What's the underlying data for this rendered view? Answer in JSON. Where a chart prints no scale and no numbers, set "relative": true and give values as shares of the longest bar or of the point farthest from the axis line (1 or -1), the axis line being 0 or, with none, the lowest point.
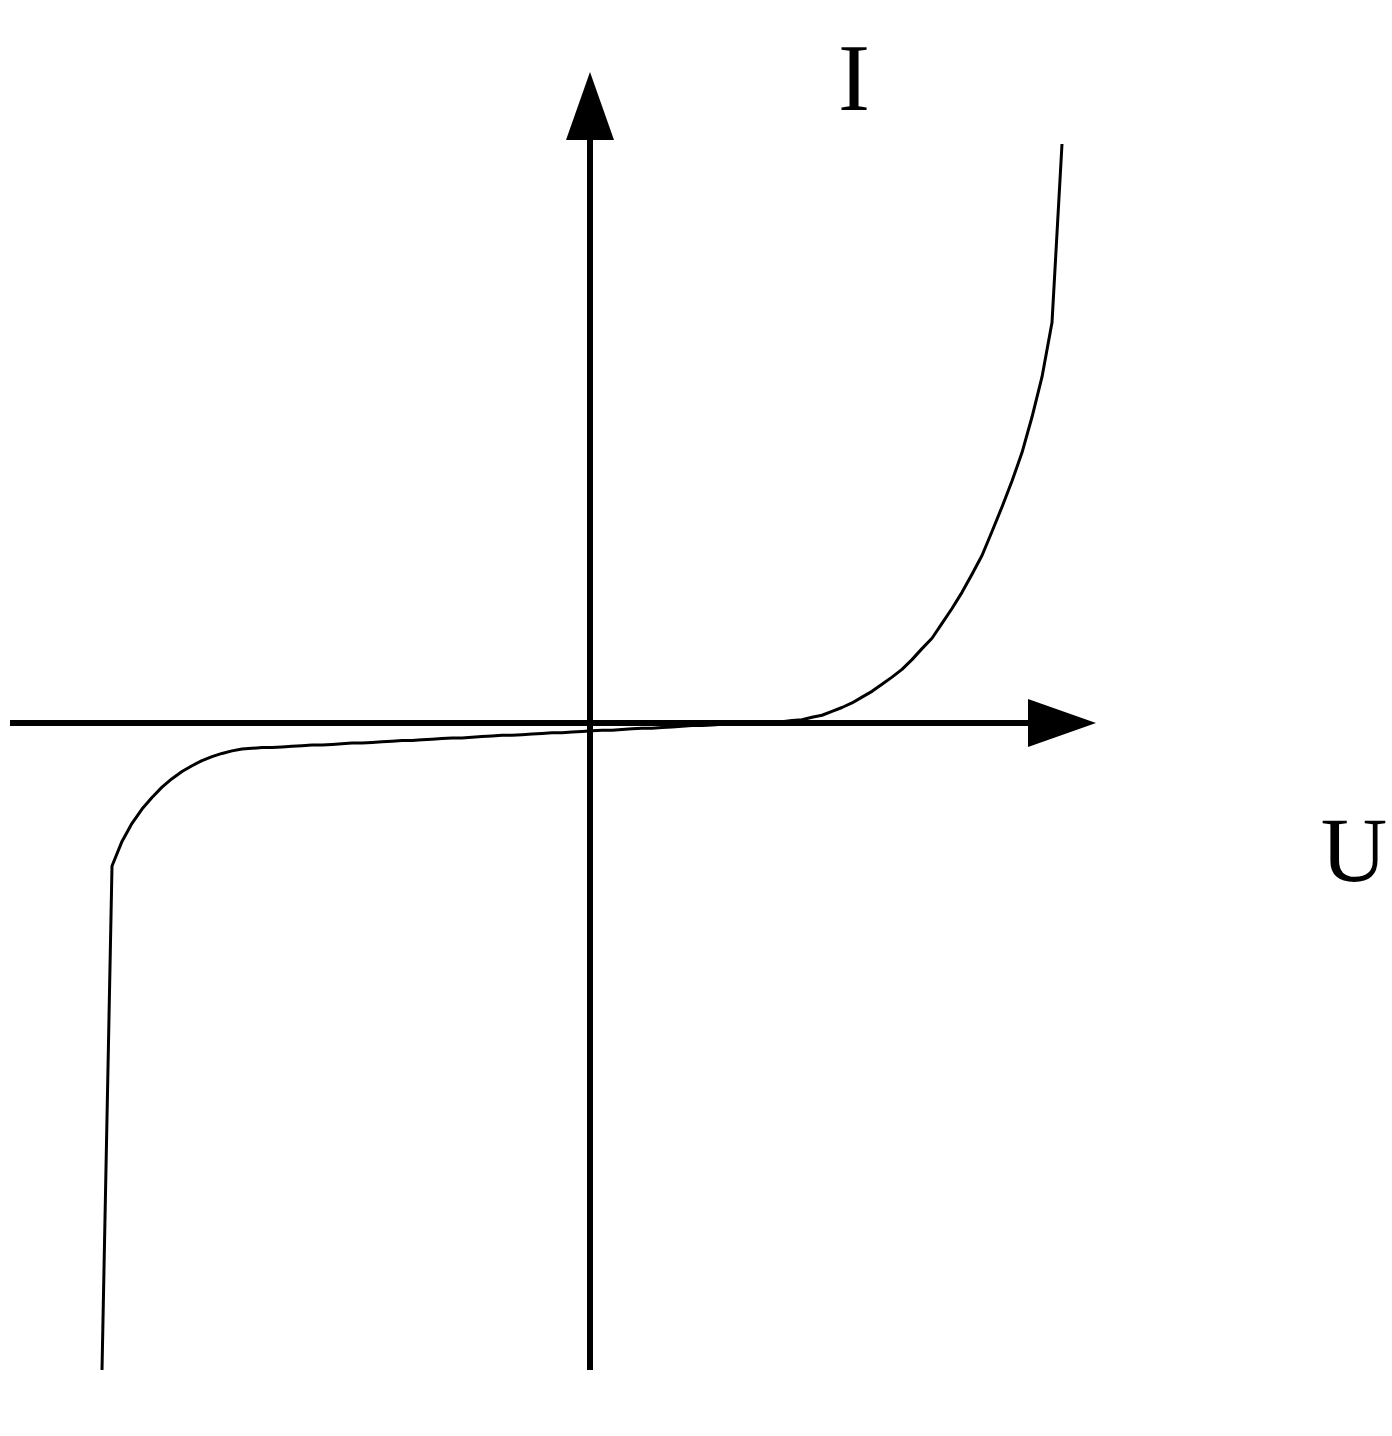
{
  "chart_data": {
    "type": "line",
    "xlabel": "U",
    "ylabel": "I",
    "relative": true,
    "color": "#000000",
    "categories": [
      null,
      null,
      null,
      null,
      null,
      null,
      null,
      null,
      null,
      null,
      null,
      null,
      null,
      null,
      null,
      null,
      null,
      null,
      null,
      null,
      null,
      null,
      null,
      null,
      null,
      null,
      null,
      null,
      null,
      null,
      null,
      null,
      null,
      null,
      null,
      null,
      null,
      null,
      null,
      null,
      null,
      null,
      null,
      null,
      null,
      null,
      null,
      null,
      null,
      null,
      null,
      null,
      null,
      null,
      null,
      null,
      null,
      null,
      null,
      null,
      null,
      null,
      null,
      null,
      null,
      null,
      null,
      null,
      null,
      null,
      null,
      null,
      null,
      null,
      null,
      null,
      null,
      null,
      null,
      null,
      null,
      null,
      null,
      null,
      null,
      null,
      null,
      null,
      null,
      null,
      null,
      null,
      null,
      null,
      null,
      null,
      null
    ],
    "values": [
      -1,
      -0.221,
      -0.183,
      -0.155,
      -0.133,
      -0.115,
      -0.099,
      -0.086,
      -0.075,
      -0.066,
      -0.058,
      -0.052,
      -0.047,
      -0.043,
      -0.04,
      -0.039,
      -0.038,
      -0.038,
      -0.037,
      -0.036,
      -0.035,
      -0.034,
      -0.034,
      -0.033,
      -0.032,
      -0.031,
      -0.031,
      -0.03,
      -0.029,
      -0.028,
      -0.027,
      -0.027,
      -0.026,
      -0.025,
      -0.024,
      -0.023,
      -0.023,
      -0.022,
      -0.021,
      -0.02,
      -0.019,
      -0.019,
      -0.018,
      -0.017,
      -0.016,
      -0.015,
      -0.015,
      -0.014,
      -0.013,
      -0.012,
      -0.011,
      -0.011,
      -0.01,
      -0.009,
      -0.008,
      -0.008,
      -0.007,
      -0.006,
      -0.005,
      -0.004,
      -0.004,
      -0.003,
      -0.002,
      -0.001,
      0,
      0,
      0.001,
      0.001,
      0.002,
      0.004,
      0.005,
      0.009,
      0.012,
      0.018,
      0.024,
      0.031,
      0.04,
      0.049,
      0.06,
      0.071,
      0.083,
      0.098,
      0.115,
      0.131,
      0.154,
      0.177,
      0.202,
      0.23,
      0.259,
      0.296,
      0.334,
      0.374,
      0.418,
      0.473,
      0.535,
      0.619,
      0.895
    ]
  }
}
